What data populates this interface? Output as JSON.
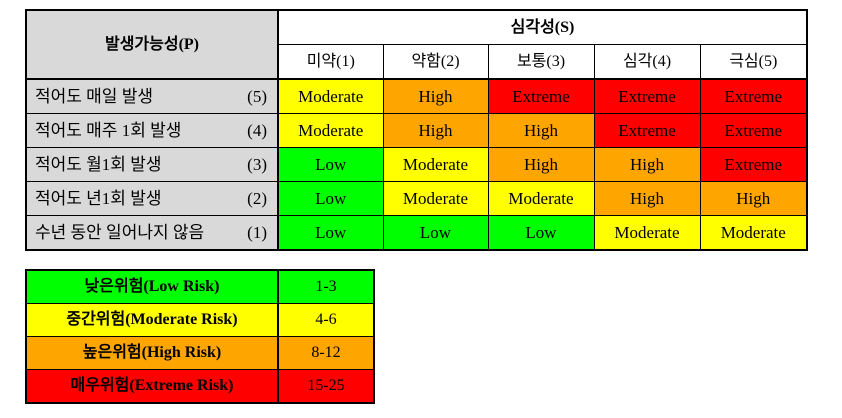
{
  "matrix": {
    "probability_header": "발생가능성(P)",
    "severity_header": "심각성(S)",
    "severity_levels": [
      "미약(1)",
      "약함(2)",
      "보통(3)",
      "심각(4)",
      "극심(5)"
    ],
    "rows": [
      {
        "label": "적어도 매일 발생",
        "value": "(5)",
        "cells": [
          "Moderate",
          "High",
          "Extreme",
          "Extreme",
          "Extreme"
        ]
      },
      {
        "label": "적어도 매주 1회 발생",
        "value": "(4)",
        "cells": [
          "Moderate",
          "High",
          "High",
          "Extreme",
          "Extreme"
        ]
      },
      {
        "label": "적어도 월1회 발생",
        "value": "(3)",
        "cells": [
          "Low",
          "Moderate",
          "High",
          "High",
          "Extreme"
        ]
      },
      {
        "label": "적어도 년1회 발생",
        "value": "(2)",
        "cells": [
          "Low",
          "Moderate",
          "Moderate",
          "High",
          "High"
        ]
      },
      {
        "label": "수년 동안 일어나지 않음",
        "value": "(1)",
        "cells": [
          "Low",
          "Low",
          "Low",
          "Moderate",
          "Moderate"
        ]
      }
    ]
  },
  "legend": [
    {
      "name": "낮은위험(Low Risk)",
      "range": "1-3"
    },
    {
      "name": "중간위험(Moderate Risk)",
      "range": "4-6"
    },
    {
      "name": "높은위험(High Risk)",
      "range": "8-12"
    },
    {
      "name": "매우위험(Extreme Risk)",
      "range": "15-25"
    }
  ],
  "colors": {
    "Low": "#00ff00",
    "Moderate": "#ffff00",
    "High": "#ffa500",
    "Extreme": "#ff0000",
    "header_gray": "#d9d9d9"
  }
}
